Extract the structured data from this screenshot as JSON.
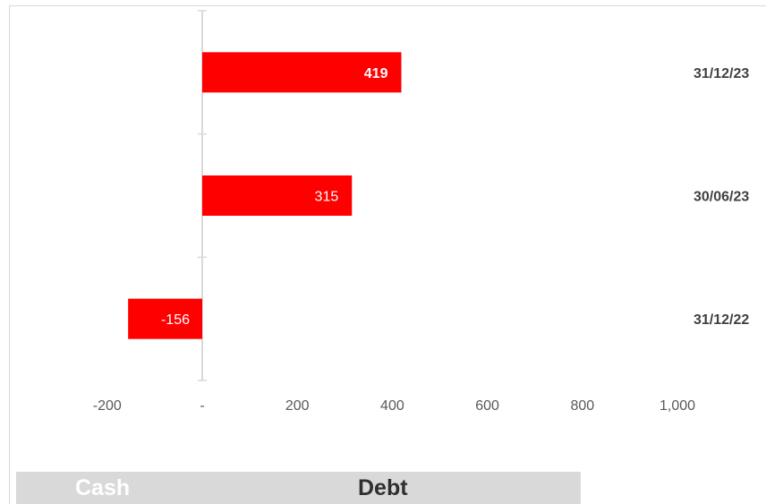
{
  "chart_data": {
    "type": "bar",
    "orientation": "horizontal",
    "categories": [
      "31/12/23",
      "30/06/23",
      "31/12/22"
    ],
    "values": [
      419,
      315,
      -156
    ],
    "data_labels": [
      "419",
      "315",
      "-156"
    ],
    "x_ticks": [
      -200,
      0,
      200,
      400,
      600,
      800,
      1000
    ],
    "x_tick_labels": [
      "-200",
      "-",
      "200",
      "400",
      "600",
      "800",
      "1,000"
    ],
    "xlim": [
      -200,
      1000
    ],
    "grid": false,
    "bar_color": "#ff0000",
    "legend": null
  },
  "footer": {
    "cash_label": "Cash",
    "debt_label": "Debt",
    "background": "#d9d9d9"
  }
}
